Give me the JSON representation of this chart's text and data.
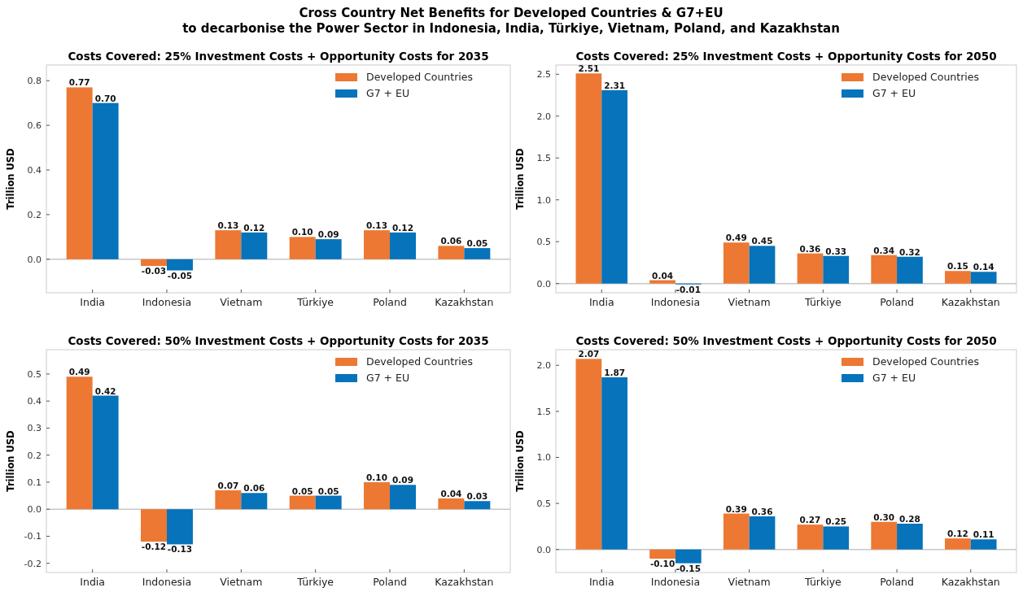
{
  "chart_data": [
    {
      "type": "bar",
      "title": "Costs Covered: 25% Investment Costs + Opportunity Costs for 2035",
      "annotations": [
        "Cross Country Net Benefits for Developed Countries & G7+EU\nto decarbonise the Power Sector in Indonesia, India, Türkiye, Vietnam, Poland, and Kazakhstan"
      ],
      "ylabel": "Trillion USD",
      "categories": [
        "India",
        "Indonesia",
        "Vietnam",
        "Türkiye",
        "Poland",
        "Kazakhstan"
      ],
      "series": [
        {
          "name": "Developed Countries",
          "color": "#ed7833",
          "values": [
            0.77,
            -0.03,
            0.13,
            0.1,
            0.13,
            0.06
          ],
          "value_labels": [
            "0.77",
            "-0.03",
            "0.13",
            "0.10",
            "0.13",
            "0.06"
          ]
        },
        {
          "name": "G7 + EU",
          "color": "#0673bb",
          "values": [
            0.7,
            -0.05,
            0.12,
            0.09,
            0.12,
            0.05
          ],
          "value_labels": [
            "0.70",
            "-0.05",
            "0.12",
            "0.09",
            "0.12",
            "0.05"
          ]
        }
      ],
      "ylim": [
        -0.15,
        0.87
      ],
      "yticks": [
        {
          "value": 0,
          "label": "0.0"
        },
        0.2,
        0.4,
        0.6,
        0.8
      ],
      "ref_lines": [
        {
          "axis": "y",
          "value": 0,
          "color": "#c8c8c8"
        }
      ],
      "legend": "top right",
      "grid": false
    },
    {
      "type": "bar",
      "title": "Costs Covered: 25% Investment Costs + Opportunity Costs for 2050",
      "ylabel": "Trillion USD",
      "categories": [
        "India",
        "Indonesia",
        "Vietnam",
        "Türkiye",
        "Poland",
        "Kazakhstan"
      ],
      "series": [
        {
          "name": "Developed Countries",
          "color": "#ed7833",
          "values": [
            2.51,
            0.04,
            0.49,
            0.36,
            0.34,
            0.15
          ],
          "value_labels": [
            "2.51",
            "0.04",
            "0.49",
            "0.36",
            "0.34",
            "0.15"
          ]
        },
        {
          "name": "G7 + EU",
          "color": "#0673bb",
          "values": [
            2.31,
            -0.01,
            0.45,
            0.33,
            0.32,
            0.14
          ],
          "value_labels": [
            "2.31",
            "-0.01",
            "0.45",
            "0.33",
            "0.32",
            "0.14"
          ]
        }
      ],
      "ylim": [
        -0.11,
        2.61
      ],
      "yticks": [
        {
          "value": 0,
          "label": "0.0"
        },
        0.5,
        {
          "value": 1,
          "label": "1.0"
        },
        1.5,
        {
          "value": 2,
          "label": "2.0"
        },
        2.5
      ],
      "ref_lines": [
        {
          "axis": "y",
          "value": 0,
          "color": "#c8c8c8"
        }
      ],
      "legend": "top right",
      "grid": false
    },
    {
      "type": "bar",
      "title": "Costs Covered: 50% Investment Costs + Opportunity Costs for 2035",
      "ylabel": "Trillion USD",
      "categories": [
        "India",
        "Indonesia",
        "Vietnam",
        "Türkiye",
        "Poland",
        "Kazakhstan"
      ],
      "series": [
        {
          "name": "Developed Countries",
          "color": "#ed7833",
          "values": [
            0.49,
            -0.12,
            0.07,
            0.05,
            0.1,
            0.04
          ],
          "value_labels": [
            "0.49",
            "-0.12",
            "0.07",
            "0.05",
            "0.10",
            "0.04"
          ]
        },
        {
          "name": "G7 + EU",
          "color": "#0673bb",
          "values": [
            0.42,
            -0.13,
            0.06,
            0.05,
            0.09,
            0.03
          ],
          "value_labels": [
            "0.42",
            "-0.13",
            "0.06",
            "0.05",
            "0.09",
            "0.03"
          ]
        }
      ],
      "ylim": [
        -0.234,
        0.59
      ],
      "yticks": [
        -0.2,
        -0.1,
        {
          "value": 0,
          "label": "0.0"
        },
        0.1,
        0.2,
        0.3,
        0.4,
        0.5
      ],
      "ref_lines": [
        {
          "axis": "y",
          "value": 0,
          "color": "#c8c8c8"
        }
      ],
      "legend": "top right",
      "grid": false
    },
    {
      "type": "bar",
      "title": "Costs Covered: 50% Investment Costs + Opportunity Costs for 2050",
      "ylabel": "Trillion USD",
      "categories": [
        "India",
        "Indonesia",
        "Vietnam",
        "Türkiye",
        "Poland",
        "Kazakhstan"
      ],
      "series": [
        {
          "name": "Developed Countries",
          "color": "#ed7833",
          "values": [
            2.07,
            -0.1,
            0.39,
            0.27,
            0.3,
            0.12
          ],
          "value_labels": [
            "2.07",
            "-0.10",
            "0.39",
            "0.27",
            "0.30",
            "0.12"
          ]
        },
        {
          "name": "G7 + EU",
          "color": "#0673bb",
          "values": [
            1.87,
            -0.15,
            0.36,
            0.25,
            0.28,
            0.11
          ],
          "value_labels": [
            "1.87",
            "-0.15",
            "0.36",
            "0.25",
            "0.28",
            "0.11"
          ]
        }
      ],
      "ylim": [
        -0.25,
        2.17
      ],
      "yticks": [
        {
          "value": 0,
          "label": "0.0"
        },
        0.5,
        {
          "value": 1,
          "label": "1.0"
        },
        1.5,
        {
          "value": 2,
          "label": "2.0"
        }
      ],
      "ref_lines": [
        {
          "axis": "y",
          "value": 0,
          "color": "#c8c8c8"
        }
      ],
      "legend": "top right",
      "grid": false
    }
  ]
}
